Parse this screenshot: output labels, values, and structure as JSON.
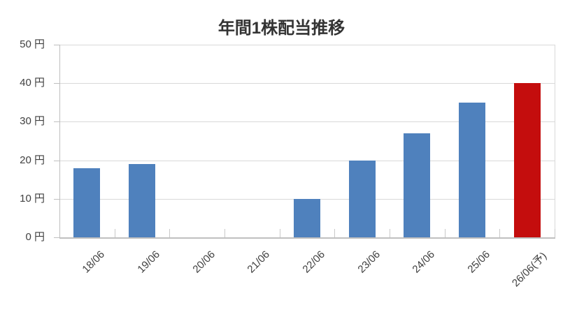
{
  "chart_data": {
    "type": "bar",
    "title": "年間1株配当推移",
    "categories": [
      "18/06",
      "19/06",
      "20/06",
      "21/06",
      "22/06",
      "23/06",
      "24/06",
      "25/06",
      "26/06(予)"
    ],
    "values": [
      18,
      19,
      0,
      0,
      10,
      20,
      27,
      35,
      40
    ],
    "unit": "円",
    "xlabel": "",
    "ylabel": "",
    "ylim": [
      0,
      50
    ],
    "y_axis": {
      "step": 10,
      "tick_labels": [
        "0 円",
        "10 円",
        "20 円",
        "30 円",
        "40 円",
        "50 円"
      ]
    },
    "forecast_index": 8,
    "forecast_note": "(予)",
    "legend": "none",
    "grid": "horizontal",
    "colors": {
      "bar": "#4F81BD",
      "forecast": "#C40D0D",
      "gridline": "#D9D9D9",
      "axis": "#BFBFBF",
      "tick": "#C9C9C9",
      "text": "#404040",
      "title_text": "#333333",
      "background": "#FFFFFF"
    }
  }
}
